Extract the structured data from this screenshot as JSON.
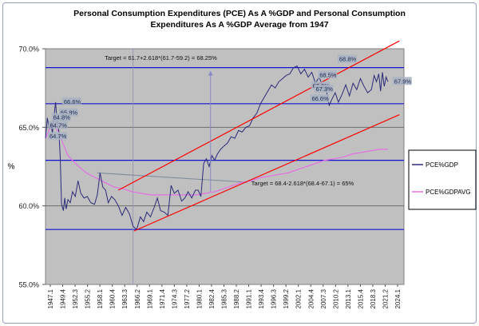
{
  "chart_data": {
    "type": "line",
    "title_lines": [
      "Personal Consumption Expenditures (PCE) As A %GDP and Personal Consumption",
      "Expenditures As A %GDP Average from 1947"
    ],
    "xlabel": "",
    "ylabel": "%",
    "ylim": [
      55,
      70
    ],
    "yticks": [
      {
        "value": 55,
        "label": "55.0%"
      },
      {
        "value": 60,
        "label": "60.0%"
      },
      {
        "value": 65,
        "label": "65.0%"
      },
      {
        "value": 70,
        "label": "70.0%"
      }
    ],
    "xlim": [
      1947.1,
      2025.3
    ],
    "xticks": [
      "1947.1",
      "1949.4",
      "1952.3",
      "1955.2",
      "1958.1",
      "1960.4",
      "1963.3",
      "1966.2",
      "1969.1",
      "1971.4",
      "1974.3",
      "1977.2",
      "1980.1",
      "1982.4",
      "1985.3",
      "1988.2",
      "1991.1",
      "1993.4",
      "1996.3",
      "1999.2",
      "2002.1",
      "2004.4",
      "2007.3",
      "2010.2",
      "2013.1",
      "2015.4",
      "2018.3",
      "2021.2",
      "2024.1"
    ],
    "series": [
      {
        "name": "PCE%GDP",
        "color": "#2b2b7a",
        "x": [
          1947.1,
          1947.5,
          1947.9,
          1948.3,
          1948.6,
          1949.0,
          1949.3,
          1949.6,
          1950.0,
          1950.3,
          1950.6,
          1951.0,
          1951.3,
          1951.6,
          1952.0,
          1952.5,
          1953.0,
          1953.6,
          1954.2,
          1954.8,
          1955.5,
          1956.2,
          1957.0,
          1957.8,
          1958.4,
          1959.0,
          1959.6,
          1960.2,
          1960.8,
          1961.5,
          1962.2,
          1963.0,
          1963.8,
          1964.6,
          1965.4,
          1966.2,
          1967.0,
          1967.8,
          1968.5,
          1969.2,
          1970.0,
          1970.8,
          1971.5,
          1972.2,
          1973.0,
          1973.8,
          1974.5,
          1975.2,
          1976.0,
          1976.8,
          1977.5,
          1978.2,
          1979.0,
          1979.8,
          1980.4,
          1981.0,
          1981.6,
          1982.2,
          1982.8,
          1983.4,
          1984.0,
          1984.6,
          1985.3,
          1986.0,
          1986.8,
          1987.6,
          1988.4,
          1989.2,
          1990.0,
          1990.8,
          1991.6,
          1992.4,
          1993.2,
          1994.0,
          1994.8,
          1995.6,
          1996.4,
          1997.2,
          1998.0,
          1998.8,
          1999.6,
          2000.4,
          2001.2,
          2002.0,
          2002.8,
          2003.6,
          2004.4,
          2005.2,
          2006.0,
          2006.8,
          2007.6,
          2008.4,
          2009.0,
          2009.6,
          2010.3,
          2011.0,
          2011.8,
          2012.6,
          2013.4,
          2014.2,
          2015.0,
          2015.8,
          2016.6,
          2017.4,
          2018.2,
          2018.8,
          2019.3,
          2019.8,
          2020.2,
          2020.6,
          2021.0,
          2021.4,
          2021.8
        ],
        "values": [
          64.3,
          65.6,
          64.9,
          65.3,
          64.6,
          65.8,
          66.6,
          65.4,
          64.8,
          63.2,
          60.1,
          59.7,
          60.5,
          59.8,
          60.4,
          60.2,
          60.9,
          60.6,
          61.6,
          60.8,
          60.5,
          60.6,
          60.2,
          60.1,
          60.7,
          62.1,
          61.2,
          61.0,
          60.2,
          60.6,
          60.4,
          60.0,
          59.4,
          59.9,
          59.5,
          58.7,
          58.5,
          59.3,
          59.0,
          59.6,
          59.3,
          59.9,
          60.5,
          59.7,
          59.6,
          59.4,
          61.3,
          60.8,
          61.0,
          60.3,
          60.5,
          60.9,
          60.5,
          61.0,
          61.0,
          60.6,
          62.7,
          63.0,
          62.5,
          63.2,
          62.9,
          63.3,
          63.6,
          63.8,
          64.0,
          64.4,
          64.3,
          64.8,
          64.7,
          65.0,
          65.1,
          65.6,
          65.9,
          66.5,
          66.9,
          67.3,
          67.7,
          67.5,
          67.9,
          68.1,
          68.3,
          68.4,
          68.8,
          68.9,
          68.4,
          68.7,
          68.2,
          68.5,
          67.8,
          68.2,
          67.6,
          67.3,
          66.4,
          66.8,
          67.2,
          66.6,
          67.1,
          67.7,
          67.0,
          67.8,
          67.4,
          68.1,
          67.6,
          67.2,
          67.4,
          68.3,
          67.9,
          68.4,
          67.3,
          68.5,
          67.6,
          68.2,
          67.9
        ]
      },
      {
        "name": "PCE%GDPAVG",
        "color": "#e46ee4",
        "x": [
          1947.1,
          1948.0,
          1949.0,
          1950.0,
          1951.0,
          1952.0,
          1954.0,
          1956.0,
          1958.0,
          1960.0,
          1962.0,
          1964.0,
          1966.0,
          1968.0,
          1970.0,
          1972.0,
          1974.0,
          1976.0,
          1978.0,
          1980.0,
          1982.0,
          1984.0,
          1986.0,
          1988.0,
          1990.0,
          1992.0,
          1994.0,
          1996.0,
          1998.0,
          2000.0,
          2002.0,
          2004.0,
          2006.0,
          2008.0,
          2010.0,
          2012.0,
          2014.0,
          2016.0,
          2018.0,
          2020.0,
          2021.8
        ],
        "values": [
          64.3,
          64.9,
          65.1,
          64.7,
          63.9,
          63.2,
          62.6,
          62.1,
          61.8,
          61.5,
          61.2,
          61.1,
          60.9,
          60.8,
          60.7,
          60.7,
          60.7,
          60.7,
          60.7,
          60.7,
          60.8,
          60.9,
          61.1,
          61.3,
          61.5,
          61.6,
          61.8,
          61.9,
          62.0,
          62.1,
          62.3,
          62.5,
          62.7,
          62.9,
          63.0,
          63.1,
          63.3,
          63.4,
          63.5,
          63.6,
          63.6
        ]
      }
    ],
    "reference_lines": [
      58.5,
      62.9,
      66.5,
      68.8
    ],
    "trend_lines": [
      {
        "from": [
          1963.0,
          61.0
        ],
        "to": [
          2024.3,
          70.5
        ]
      },
      {
        "from": [
          1966.4,
          58.4
        ],
        "to": [
          2024.3,
          65.8
        ]
      }
    ],
    "gray_line": {
      "from": [
        1958.4,
        62.1
      ],
      "to": [
        1991.1,
        61.5
      ]
    },
    "vertical_marker_x": 1966.2,
    "arrow": {
      "x": 1983.1,
      "from": 60.9,
      "to": 68.6
    },
    "targets": [
      {
        "text": "Target = 61.7+2.618*(61.7-59.2)  = 68.25%",
        "x": 1960.0,
        "y": 69.3
      },
      {
        "text": "Target = 68.4-2.618*(68.4-67.1)  = 65%",
        "x": 1992.0,
        "y": 61.3
      }
    ],
    "point_labels": [
      {
        "text": "66.6%",
        "x": 1950.9,
        "y": 66.5
      },
      {
        "text": "65.8%",
        "x": 1950.2,
        "y": 65.8
      },
      {
        "text": "64.8%",
        "x": 1948.6,
        "y": 65.5
      },
      {
        "text": "64.7%",
        "x": 1947.9,
        "y": 65.0
      },
      {
        "text": "64.7%",
        "x": 1947.8,
        "y": 64.3
      },
      {
        "text": "68.8%",
        "x": 2011.0,
        "y": 69.2
      },
      {
        "text": "68.5%",
        "x": 2006.7,
        "y": 68.2
      },
      {
        "text": "67.6%",
        "x": 2005.2,
        "y": 67.5
      },
      {
        "text": "67.3%",
        "x": 2005.9,
        "y": 67.3
      },
      {
        "text": "66.6%",
        "x": 2005.0,
        "y": 66.7
      },
      {
        "text": "67.9%",
        "x": 2023.0,
        "y": 67.8
      }
    ],
    "legend": {
      "position": "right"
    },
    "grid": true
  }
}
